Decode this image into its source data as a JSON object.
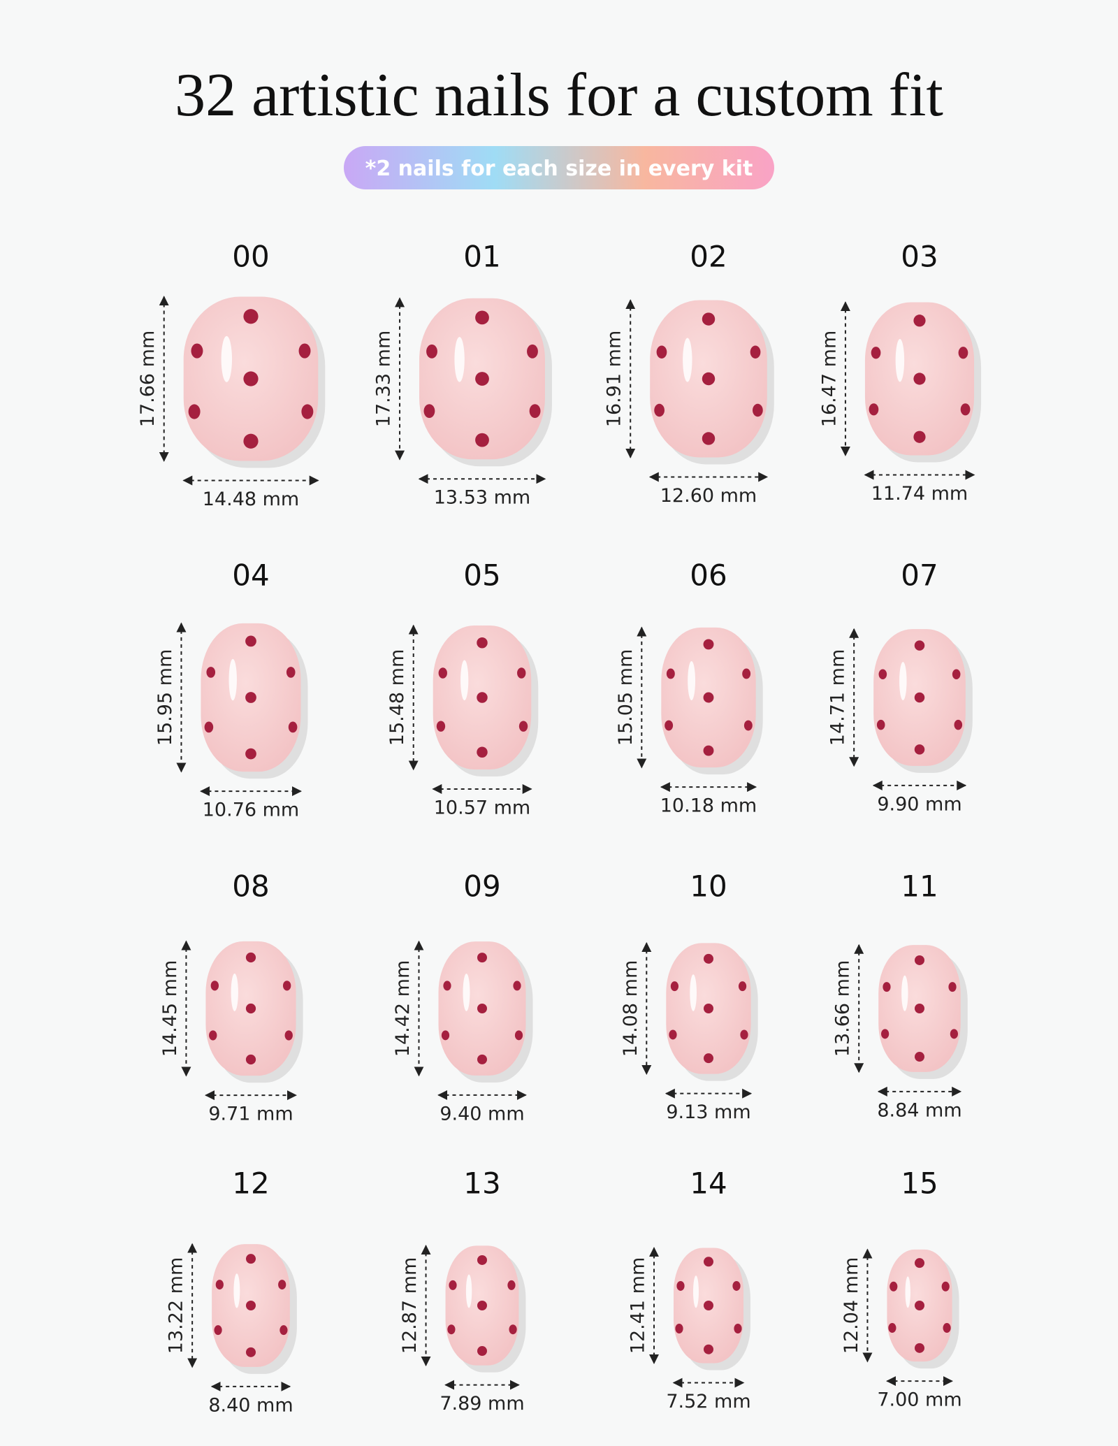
{
  "header": {
    "title": "32 artistic nails for a custom fit",
    "badge": "*2 nails for each size in every kit"
  },
  "nails": [
    {
      "size": "00",
      "height": "17.66 mm",
      "width": "14.48 mm"
    },
    {
      "size": "01",
      "height": "17.33 mm",
      "width": "13.53 mm"
    },
    {
      "size": "02",
      "height": "16.91 mm",
      "width": "12.60 mm"
    },
    {
      "size": "03",
      "height": "16.47 mm",
      "width": "11.74 mm"
    },
    {
      "size": "04",
      "height": "15.95 mm",
      "width": "10.76 mm"
    },
    {
      "size": "05",
      "height": "15.48 mm",
      "width": "10.57 mm"
    },
    {
      "size": "06",
      "height": "15.05 mm",
      "width": "10.18 mm"
    },
    {
      "size": "07",
      "height": "14.71 mm",
      "width": "9.90 mm"
    },
    {
      "size": "08",
      "height": "14.45 mm",
      "width": "9.71 mm"
    },
    {
      "size": "09",
      "height": "14.42 mm",
      "width": "9.40 mm"
    },
    {
      "size": "10",
      "height": "14.08 mm",
      "width": "9.13 mm"
    },
    {
      "size": "11",
      "height": "13.66 mm",
      "width": "8.84 mm"
    },
    {
      "size": "12",
      "height": "13.22 mm",
      "width": "8.40 mm"
    },
    {
      "size": "13",
      "height": "12.87 mm",
      "width": "7.89 mm"
    },
    {
      "size": "14",
      "height": "12.41 mm",
      "width": "7.52 mm"
    },
    {
      "size": "15",
      "height": "12.04 mm",
      "width": "7.00 mm"
    }
  ]
}
